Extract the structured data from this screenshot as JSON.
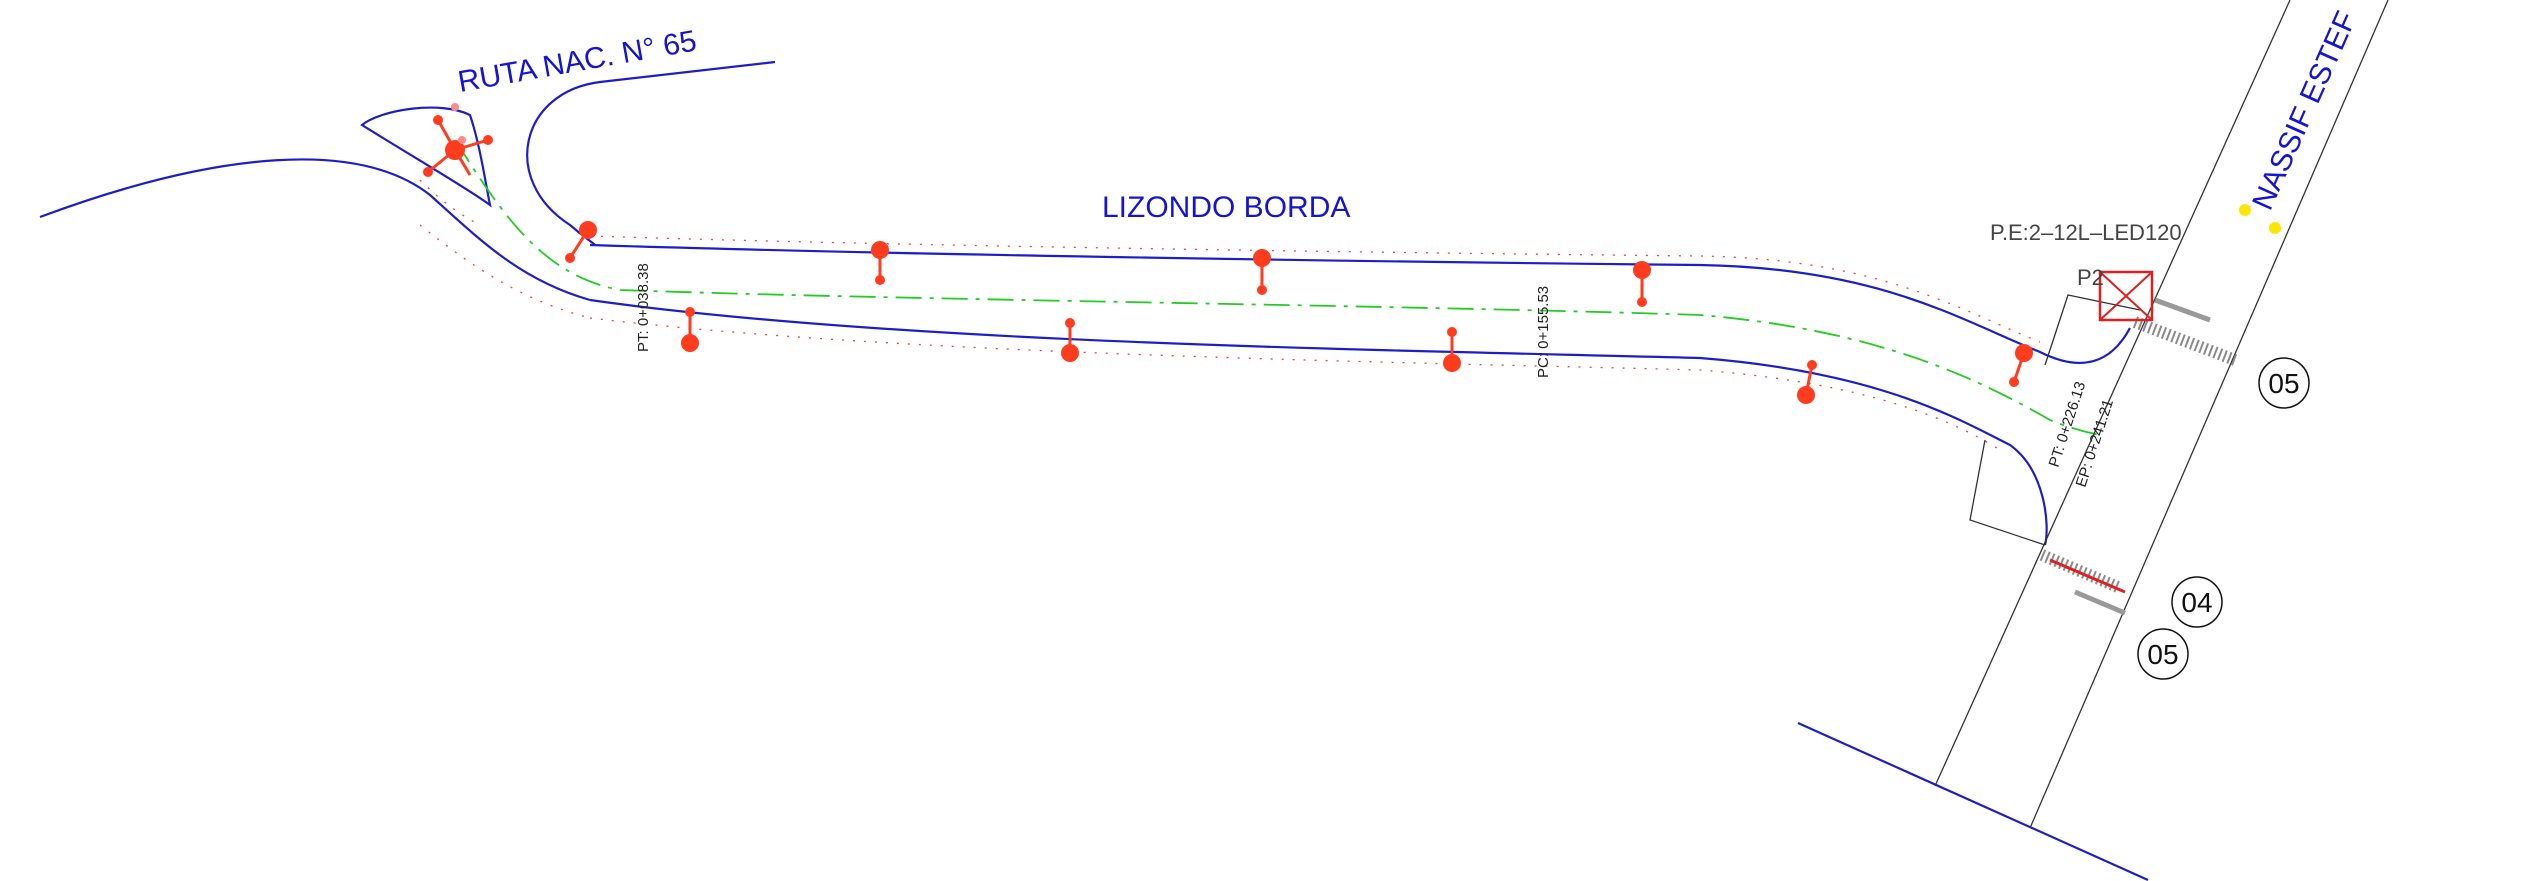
{
  "streets": {
    "ruta": "RUTA NAC. N° 65",
    "lizondo": "LIZONDO BORDA",
    "nassif": "NASSIF ESTEF"
  },
  "stations": {
    "pt1": "PT: 0+038.38",
    "pc": "PC: 0+155.53",
    "pt2": "PT: 0+226.13",
    "ep": "EP: 0+241.21"
  },
  "panel": {
    "spec": "P.E:2–12L–LED120",
    "id": "P2"
  },
  "markers": {
    "m05_top": "05",
    "m04": "04",
    "m05_bottom": "05"
  },
  "colors": {
    "curb": "#1e1ec8",
    "street_text": "#1414d2",
    "luminaire": "#ff3c1e",
    "hatch": "#ff3a3a",
    "axis": "#22cc22",
    "panel": "#e02020",
    "accent_yellow": "#ffe600"
  },
  "icons": {
    "luminaire": "luminaire-pole-icon",
    "panel": "electrical-panel-icon",
    "marker": "numbered-circle-marker"
  }
}
